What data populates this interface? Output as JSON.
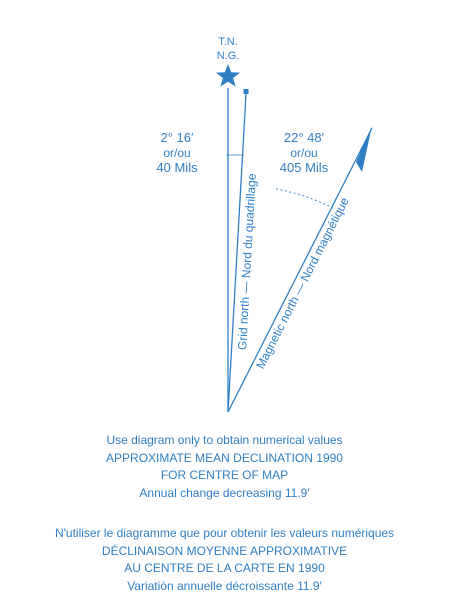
{
  "diagram": {
    "true_north_label_1": "T.N.",
    "true_north_label_2": "N.G.",
    "grid_angle_deg": "2° 16′",
    "grid_angle_oru": "or/ou",
    "grid_angle_mils": "40 Mils",
    "magnetic_angle_deg": "22° 48′",
    "magnetic_angle_oru": "or/ou",
    "magnetic_angle_mils": "405 Mils",
    "grid_north_label": "Grid north — Nord du quadrillage",
    "magnetic_north_label": "Magnetic north — Nord magnétique",
    "line_color": "#2f7fc4",
    "star_icon": "star-icon",
    "arrow_icon": "half-arrowhead-icon"
  },
  "caption_en": {
    "line1": "Use diagram only to obtain numerical values",
    "line2": "APPROXIMATE MEAN DECLINATION 1990",
    "line3": "FOR CENTRE OF MAP",
    "line4": "Annual change decreasing 11.9′"
  },
  "caption_fr": {
    "line1": "N'utiliser le diagramme que pour obtenir les valeurs numériques",
    "line2": "DÉCLINAISON MOYENNE APPROXIMATIVE",
    "line3": "AU CENTRE DE LA CARTE EN 1990",
    "line4": "Variatiòn annuelle décroissante 11.9′"
  }
}
